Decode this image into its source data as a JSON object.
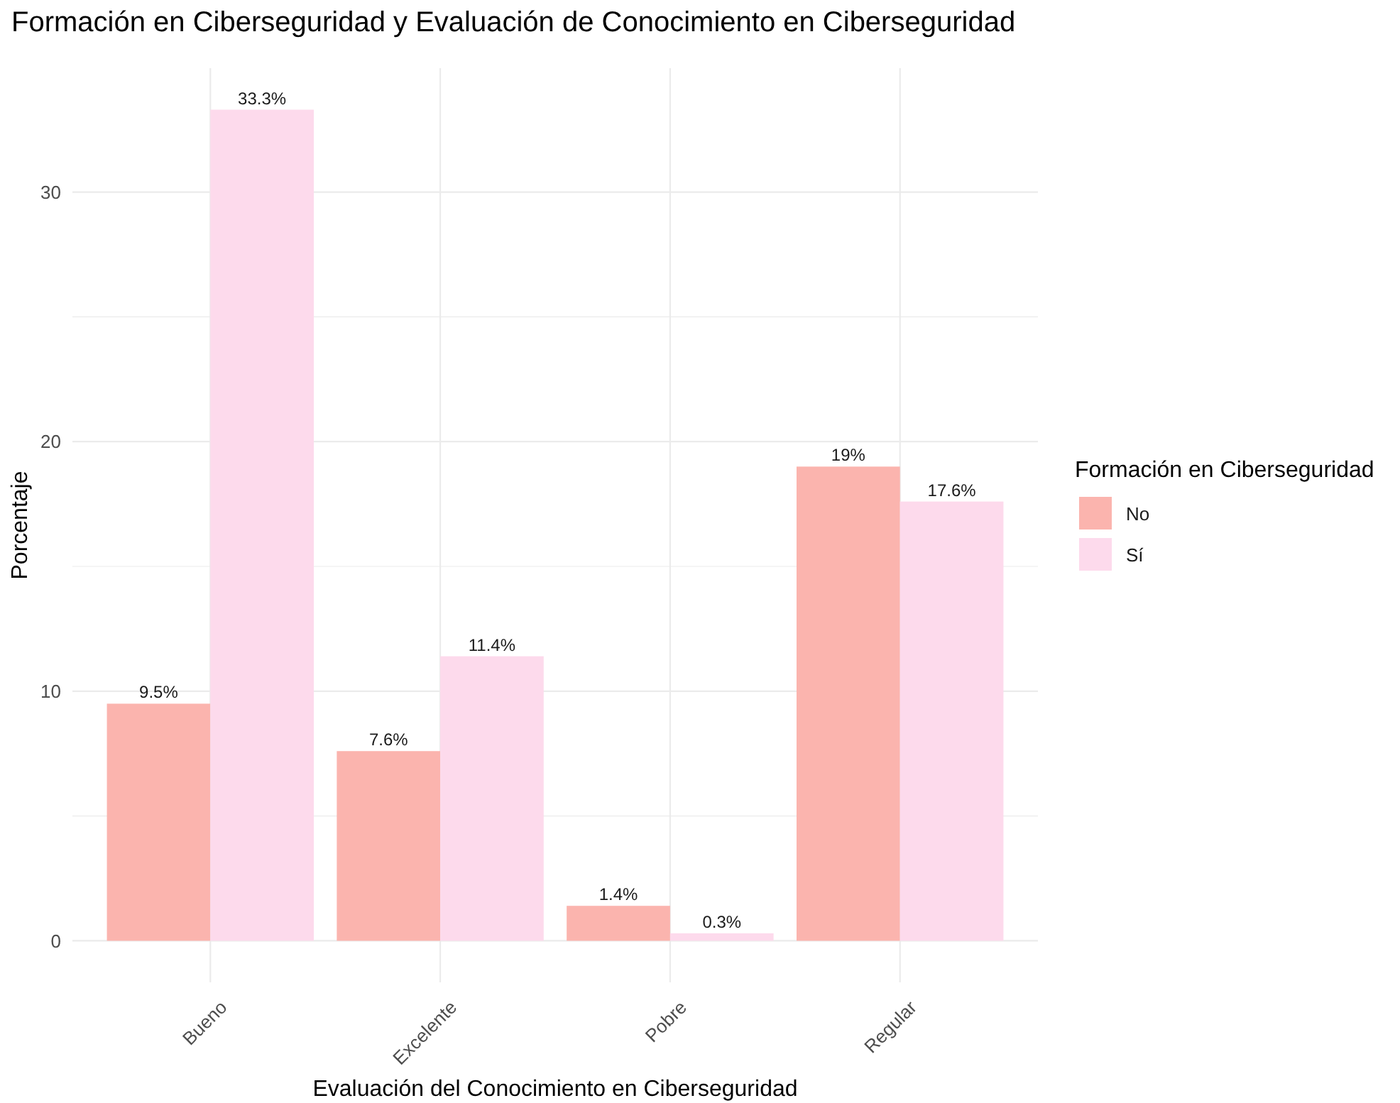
{
  "chart_data": {
    "type": "bar",
    "title": "Formación en Ciberseguridad y Evaluación de Conocimiento en Ciberseguridad",
    "xlabel": "Evaluación del Conocimiento en Ciberseguridad",
    "ylabel": "Porcentaje",
    "legend_title": "Formación en Ciberseguridad",
    "categories": [
      "Bueno",
      "Excelente",
      "Pobre",
      "Regular"
    ],
    "series": [
      {
        "name": "No",
        "color": "#fbb4ae",
        "values": [
          9.5,
          7.6,
          1.4,
          19
        ],
        "value_labels": [
          "9.5%",
          "7.6%",
          "1.4%",
          "19%"
        ]
      },
      {
        "name": "Sí",
        "color": "#fddaec",
        "values": [
          33.3,
          11.4,
          0.3,
          17.6
        ],
        "value_labels": [
          "33.3%",
          "11.4%",
          "0.3%",
          "17.6%"
        ]
      }
    ],
    "ylim": [
      -1.665,
      34.965
    ],
    "yticks": [
      0,
      {
        "value": 5,
        "label": null
      },
      10,
      {
        "value": 15,
        "label": null
      },
      20,
      {
        "value": 25,
        "label": null
      },
      30
    ],
    "grid": true,
    "legend": "right"
  }
}
